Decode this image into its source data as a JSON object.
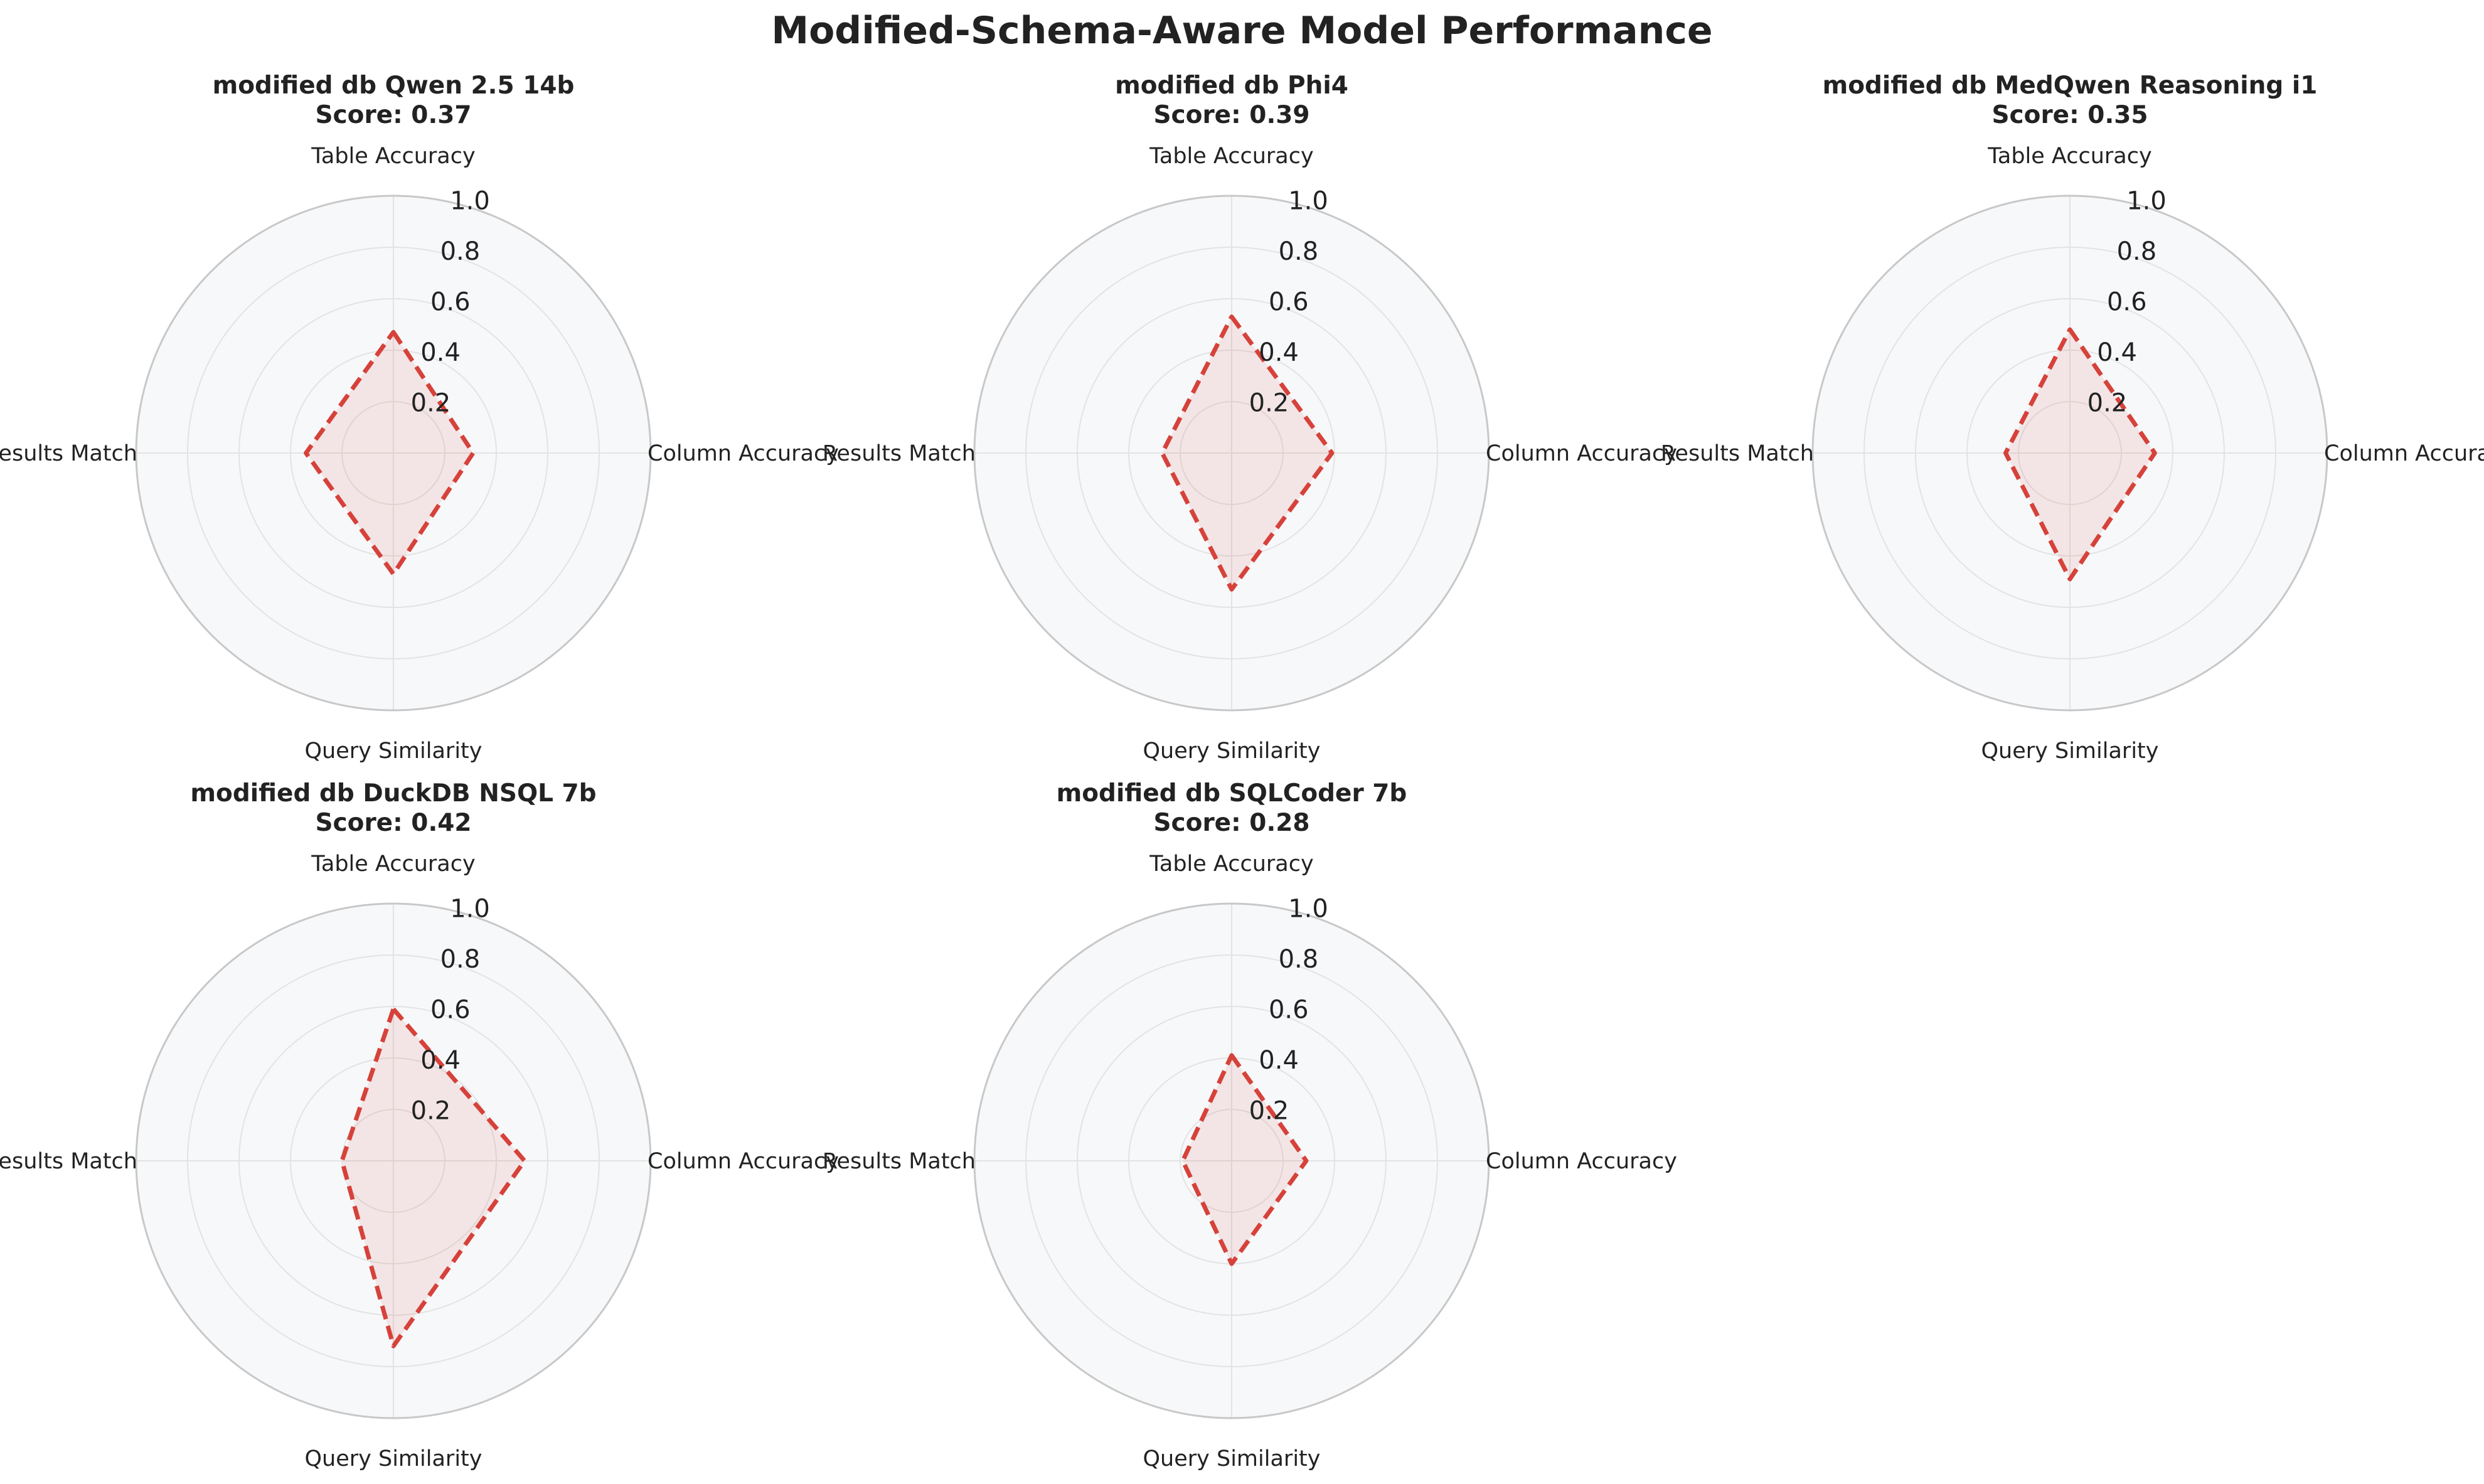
{
  "title": "Modified-Schema-Aware Model Performance",
  "chart_data": {
    "type": "radar",
    "axes": [
      "Table Accuracy",
      "Column Accuracy",
      "Query Similarity",
      "Results Match"
    ],
    "rlim": [
      0,
      1.0
    ],
    "r_ticks": [
      "0.2",
      "0.4",
      "0.6",
      "0.8",
      "1.0"
    ],
    "r_tick_values": [
      0.2,
      0.4,
      0.6,
      0.8,
      1.0
    ],
    "grid": true,
    "style": {
      "line_color": "#d6423a",
      "fill_color": "#d6423a",
      "line_style": "dashed",
      "panel_bg": "#f7f8fa",
      "grid_color": "#e3e3e3",
      "frame_color": "#c8c8c8"
    },
    "panels": [
      {
        "name_line": "modified db Qwen 2.5 14b",
        "score_line": "Score: 0.37",
        "values": [
          0.47,
          0.31,
          0.47,
          0.34
        ]
      },
      {
        "name_line": "modified db Phi4",
        "score_line": "Score: 0.39",
        "values": [
          0.53,
          0.39,
          0.53,
          0.27
        ]
      },
      {
        "name_line": "modified db MedQwen Reasoning i1",
        "score_line": "Score: 0.35",
        "values": [
          0.48,
          0.33,
          0.49,
          0.25
        ]
      },
      {
        "name_line": "modified db DuckDB NSQL 7b",
        "score_line": "Score: 0.42",
        "values": [
          0.59,
          0.51,
          0.72,
          0.2
        ]
      },
      {
        "name_line": "modified db SQLCoder 7b",
        "score_line": "Score: 0.28",
        "values": [
          0.41,
          0.29,
          0.4,
          0.19
        ]
      }
    ]
  }
}
